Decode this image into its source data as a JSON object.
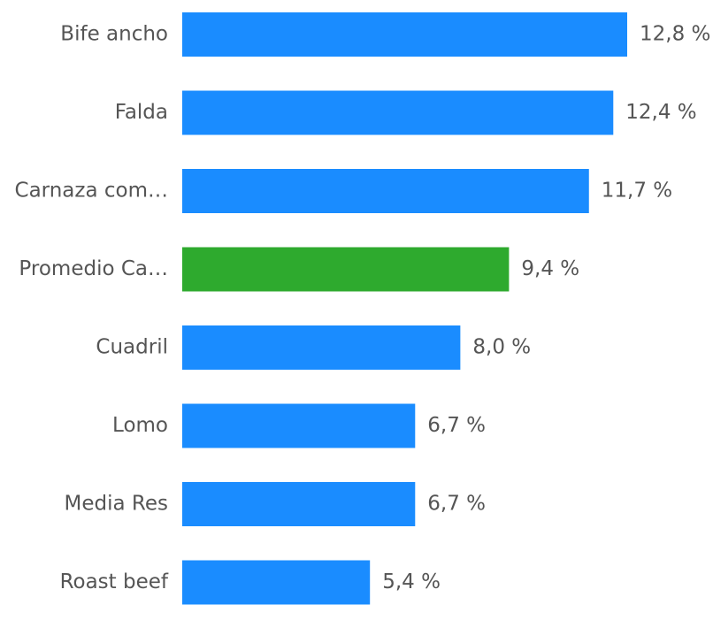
{
  "chart_data": {
    "type": "bar",
    "orientation": "horizontal",
    "categories": [
      "Bife ancho",
      "Falda",
      "Carnaza com…",
      "Promedio Ca…",
      "Cuadril",
      "Lomo",
      "Media Res",
      "Roast beef"
    ],
    "values": [
      12.8,
      12.4,
      11.7,
      9.4,
      8.0,
      6.7,
      6.7,
      5.4
    ],
    "value_labels": [
      "12,8 %",
      "12,4 %",
      "11,7 %",
      "9,4 %",
      "8,0 %",
      "6,7 %",
      "6,7 %",
      "5,4 %"
    ],
    "colors": [
      "#1a8cff",
      "#1a8cff",
      "#1a8cff",
      "#2eaa2e",
      "#1a8cff",
      "#1a8cff",
      "#1a8cff",
      "#1a8cff"
    ]
  }
}
